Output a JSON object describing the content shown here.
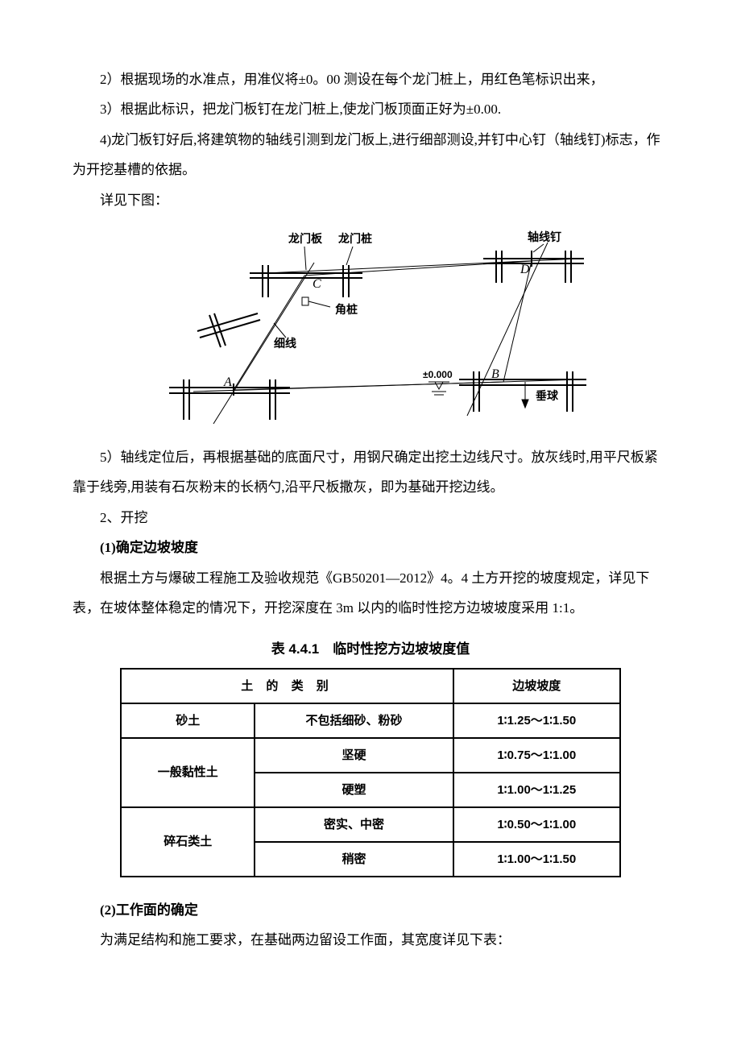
{
  "body": {
    "p1": "2）根据现场的水准点，用准仪将±0。00 测设在每个龙门桩上，用红色笔标识出来，",
    "p2": "3）根据此标识，把龙门板钉在龙门桩上,使龙门板顶面正好为±0.00.",
    "p3": "4)龙门板钉好后,将建筑物的轴线引测到龙门板上,进行细部测设,并钉中心钉（轴线钉)标志，作为开挖基槽的依据。",
    "p4": "详见下图：",
    "p5": "5）轴线定位后，再根据基础的底面尺寸，用钢尺确定出挖土边线尺寸。放灰线时,用平尺板紧靠于线旁,用装有石灰粉末的长柄勺,沿平尺板撒灰，即为基础开挖边线。",
    "s2_title": "2、开挖",
    "s2_1_title": "(1)确定边坡坡度",
    "s2_1_body": "根据土方与爆破工程施工及验收规范《GB50201—2012》4。4 土方开挖的坡度规定，详见下表，在坡体整体稳定的情况下，开挖深度在 3m 以内的临时性挖方边坡坡度采用 1:1。",
    "s2_2_title": "(2)工作面的确定",
    "s2_2_body": "为满足结构和施工要求，在基础两边留设工作面，其宽度详见下表："
  },
  "diagram_labels": {
    "board": "龙门板",
    "pile": "龙门桩",
    "axis_nail": "轴线钉",
    "corner_pile": "角桩",
    "string_line": "细线",
    "plumb": "垂球",
    "datum": "±0.000",
    "A": "A",
    "B": "B",
    "C": "C",
    "D": "D"
  },
  "table": {
    "title": "表 4.4.1　临时性挖方边坡坡度值",
    "header_left": "土 的 类 别",
    "header_right": "边坡坡度",
    "rows": [
      {
        "cat": "砂土",
        "sub": "不包括细砂、粉砂",
        "val": "1∶1.25～1∶1.50",
        "cat_rowspan": 1
      },
      {
        "cat": "一般黏性土",
        "sub": "坚硬",
        "val": "1∶0.75～1∶1.00",
        "cat_rowspan": 2
      },
      {
        "cat": "",
        "sub": "硬塑",
        "val": "1∶1.00～1∶1.25",
        "cat_rowspan": 0
      },
      {
        "cat": "碎石类土",
        "sub": "密实、中密",
        "val": "1∶0.50～1∶1.00",
        "cat_rowspan": 2
      },
      {
        "cat": "",
        "sub": "稍密",
        "val": "1∶1.00～1∶1.50",
        "cat_rowspan": 0
      }
    ]
  },
  "colors": {
    "text": "#000000",
    "bg": "#ffffff",
    "stroke": "#000000"
  }
}
